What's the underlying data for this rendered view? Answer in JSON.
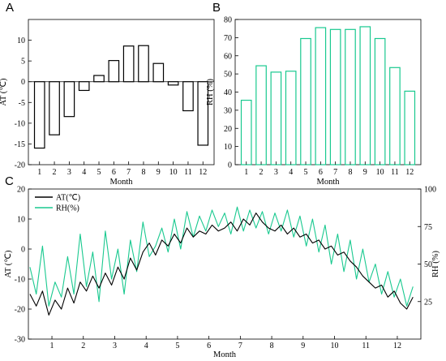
{
  "colors": {
    "at": "#000000",
    "rh": "#19c98f"
  },
  "chart_data": [
    {
      "panel": "A",
      "type": "bar",
      "categories": [
        "1",
        "2",
        "3",
        "4",
        "5",
        "6",
        "7",
        "8",
        "9",
        "10",
        "11",
        "12"
      ],
      "values": [
        -16,
        -12.8,
        -8.4,
        -2.1,
        1.5,
        5.1,
        8.6,
        8.7,
        4.4,
        -0.8,
        -7,
        -15.3
      ],
      "xlabel": "Month",
      "ylabel": "AT (℃)",
      "ylim": [
        -20,
        15
      ],
      "yticks": [
        10,
        5,
        0,
        -5,
        -10,
        -15,
        -20
      ],
      "bar_color": "#000000"
    },
    {
      "panel": "B",
      "type": "bar",
      "categories": [
        "1",
        "2",
        "3",
        "4",
        "5",
        "6",
        "7",
        "8",
        "9",
        "10",
        "11",
        "12"
      ],
      "values": [
        35.5,
        54.5,
        51,
        51.5,
        69.5,
        75.5,
        74.5,
        74.5,
        76,
        69.5,
        53.5,
        40.5
      ],
      "xlabel": "Month",
      "ylabel": "RH (%)",
      "ylim": [
        0,
        80
      ],
      "yticks": [
        80,
        70,
        60,
        50,
        40,
        30,
        20,
        10,
        0
      ],
      "bar_color": "#19c98f"
    },
    {
      "panel": "C",
      "type": "line",
      "xlabel": "Month",
      "ylabel_left": "AT (℃)",
      "ylabel_right": "RH (%)",
      "xlim": [
        0.25,
        12.75
      ],
      "xticks": [
        1,
        2,
        3,
        4,
        5,
        6,
        7,
        8,
        9,
        10,
        11,
        12
      ],
      "ylim_left": [
        -30,
        20
      ],
      "yticks_left": [
        20,
        10,
        0,
        -10,
        -20,
        -30
      ],
      "ylim_right": [
        0,
        100
      ],
      "yticks_right": [
        100,
        75,
        50,
        25
      ],
      "legend": [
        "AT(℃)",
        "RH(%)"
      ],
      "legend_position": "top-left",
      "series": [
        {
          "name": "AT(℃)",
          "axis": "left",
          "color": "#000000",
          "x": [
            0.3,
            0.5,
            0.7,
            0.9,
            1.1,
            1.3,
            1.5,
            1.7,
            1.9,
            2.1,
            2.3,
            2.5,
            2.7,
            2.9,
            3.1,
            3.3,
            3.5,
            3.7,
            3.9,
            4.1,
            4.3,
            4.5,
            4.7,
            4.9,
            5.1,
            5.3,
            5.5,
            5.7,
            5.9,
            6.1,
            6.3,
            6.5,
            6.7,
            6.9,
            7.1,
            7.3,
            7.5,
            7.7,
            7.9,
            8.1,
            8.3,
            8.5,
            8.7,
            8.9,
            9.1,
            9.3,
            9.5,
            9.7,
            9.9,
            10.1,
            10.3,
            10.5,
            10.7,
            10.9,
            11.1,
            11.3,
            11.5,
            11.7,
            11.9,
            12.1,
            12.3,
            12.5
          ],
          "y": [
            -15,
            -19,
            -14,
            -22,
            -17,
            -20,
            -13,
            -18,
            -11,
            -14,
            -9,
            -13,
            -8,
            -12,
            -6,
            -10,
            -3,
            -7,
            -1,
            2,
            -2,
            3,
            1,
            5,
            2,
            7,
            4,
            6,
            5,
            8,
            6,
            7,
            9,
            6,
            10,
            8,
            12,
            9,
            7,
            6,
            8,
            5,
            7,
            4,
            5,
            2,
            3,
            0,
            1,
            -2,
            -1,
            -4,
            -6,
            -9,
            -11,
            -13,
            -12,
            -16,
            -14,
            -18,
            -20,
            -16
          ]
        },
        {
          "name": "RH(%)",
          "axis": "right",
          "color": "#19c98f",
          "x": [
            0.3,
            0.5,
            0.7,
            0.9,
            1.1,
            1.3,
            1.5,
            1.7,
            1.9,
            2.1,
            2.3,
            2.5,
            2.7,
            2.9,
            3.1,
            3.3,
            3.5,
            3.7,
            3.9,
            4.1,
            4.3,
            4.5,
            4.7,
            4.9,
            5.1,
            5.3,
            5.5,
            5.7,
            5.9,
            6.1,
            6.3,
            6.5,
            6.7,
            6.9,
            7.1,
            7.3,
            7.5,
            7.7,
            7.9,
            8.1,
            8.3,
            8.5,
            8.7,
            8.9,
            9.1,
            9.3,
            9.5,
            9.7,
            9.9,
            10.1,
            10.3,
            10.5,
            10.7,
            10.9,
            11.1,
            11.3,
            11.5,
            11.7,
            11.9,
            12.1,
            12.3,
            12.5
          ],
          "y": [
            48,
            30,
            62,
            22,
            38,
            28,
            55,
            30,
            70,
            35,
            58,
            25,
            72,
            40,
            60,
            30,
            66,
            45,
            78,
            55,
            62,
            74,
            58,
            80,
            60,
            85,
            68,
            82,
            72,
            86,
            75,
            84,
            70,
            88,
            72,
            86,
            74,
            85,
            70,
            84,
            72,
            86,
            68,
            82,
            62,
            80,
            58,
            76,
            50,
            70,
            45,
            66,
            40,
            60,
            38,
            50,
            30,
            45,
            28,
            40,
            22,
            35
          ]
        }
      ]
    }
  ]
}
